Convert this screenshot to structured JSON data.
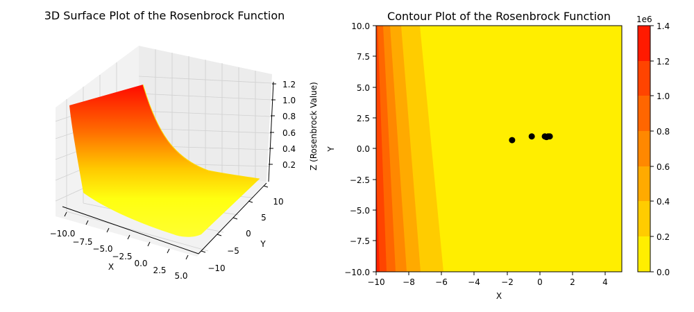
{
  "chart_data": [
    {
      "type": "surface3d",
      "title": "3D Surface Plot of the Rosenbrock Function",
      "xlabel": "X",
      "ylabel": "Y",
      "zlabel": "Z (Rosenbrock Value)",
      "x_ticks": [
        "−10.0",
        "−7.5",
        "−5.0",
        "−2.5",
        "0.0",
        "2.5",
        "5.0"
      ],
      "y_ticks": [
        "−10",
        "−5",
        "0",
        "5",
        "10"
      ],
      "z_ticks": [
        "0.2",
        "0.4",
        "0.6",
        "0.8",
        "1.0",
        "1.2"
      ],
      "xlim": [
        -10,
        5
      ],
      "ylim": [
        -10,
        10
      ],
      "zlim": [
        0,
        1.2
      ],
      "z_scale_note": "1e6",
      "colormap": [
        "#ffff00",
        "#ff0000"
      ]
    },
    {
      "type": "contour",
      "title": "Contour Plot of the Rosenbrock Function",
      "xlabel": "X",
      "ylabel": "Y",
      "x_ticks": [
        "−10",
        "−8",
        "−6",
        "−4",
        "−2",
        "0",
        "2",
        "4"
      ],
      "y_ticks": [
        "10.0",
        "7.5",
        "5.0",
        "2.5",
        "0.0",
        "−2.5",
        "−5.0",
        "−7.5",
        "−10.0"
      ],
      "xlim": [
        -10,
        5
      ],
      "ylim": [
        -10,
        10
      ],
      "colorbar": {
        "offset_label": "1e6",
        "ticks": [
          "1.4",
          "1.2",
          "1.0",
          "0.8",
          "0.6",
          "0.4",
          "0.2",
          "0.0"
        ],
        "levels": [
          "#ffee00",
          "#ffcc00",
          "#ffaa00",
          "#ff8800",
          "#ff6600",
          "#ff4400",
          "#ff2200"
        ]
      },
      "points": [
        {
          "x": -1.7,
          "y": 0.7
        },
        {
          "x": -0.5,
          "y": 1.0
        },
        {
          "x": 0.3,
          "y": 1.0
        },
        {
          "x": 0.4,
          "y": 0.95
        },
        {
          "x": 0.5,
          "y": 1.0
        },
        {
          "x": 0.6,
          "y": 1.0
        }
      ],
      "point_color": "#000000"
    }
  ]
}
